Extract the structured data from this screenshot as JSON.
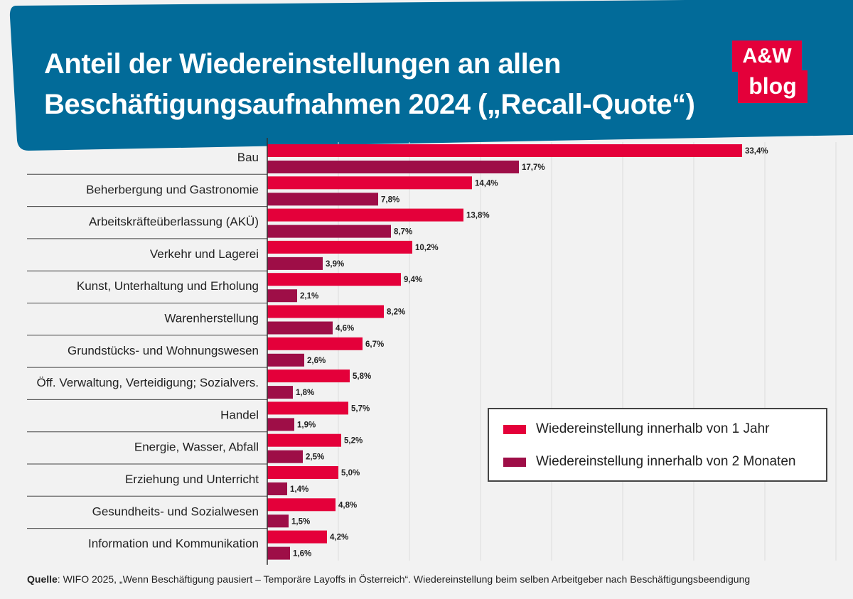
{
  "header": {
    "title_line1": "Anteil der Wiedereinstellungen an allen",
    "title_line2": "Beschäftigungsaufnahmen 2024 („Recall-Quote“)",
    "logo_top": "A&W",
    "logo_bottom": "blog"
  },
  "colors": {
    "header_bg": "#026b99",
    "series1": "#e4003a",
    "series2": "#9e0e47",
    "logo": "#e4003a"
  },
  "chart_data": {
    "type": "bar",
    "orientation": "horizontal",
    "categories": [
      "Bau",
      "Beherbergung und Gastronomie",
      "Arbeitskräfteüberlassung (AKÜ)",
      "Verkehr und Lagerei",
      "Kunst, Unterhaltung und Erholung",
      "Warenherstellung",
      "Grundstücks- und Wohnungswesen",
      "Öff. Verwaltung, Verteidigung; Sozialvers.",
      "Handel",
      "Energie, Wasser, Abfall",
      "Erziehung und Unterricht",
      "Gesundheits- und Sozialwesen",
      "Information und Kommunikation"
    ],
    "series": [
      {
        "name": "Wiedereinstellung innerhalb von 1 Jahr",
        "values": [
          33.4,
          14.4,
          13.8,
          10.2,
          9.4,
          8.2,
          6.7,
          5.8,
          5.7,
          5.2,
          5.0,
          4.8,
          4.2
        ],
        "labels": [
          "33,4%",
          "14,4%",
          "13,8%",
          "10,2%",
          "9,4%",
          "8,2%",
          "6,7%",
          "5,8%",
          "5,7%",
          "5,2%",
          "5,0%",
          "4,8%",
          "4,2%"
        ]
      },
      {
        "name": "Wiedereinstellung innerhalb von 2 Monaten",
        "values": [
          17.7,
          7.8,
          8.7,
          3.9,
          2.1,
          4.6,
          2.6,
          1.8,
          1.9,
          2.5,
          1.4,
          1.5,
          1.6
        ],
        "labels": [
          "17,7%",
          "7,8%",
          "8,7%",
          "3,9%",
          "2,1%",
          "4,6%",
          "2,6%",
          "1,8%",
          "1,9%",
          "2,5%",
          "1,4%",
          "1,5%",
          "1,6%"
        ]
      }
    ],
    "xlim": [
      0,
      40
    ],
    "grid": true,
    "legend_position": "bottom-right"
  },
  "source": {
    "label": "Quelle",
    "text": ": WIFO 2025, „Wenn Beschäftigung pausiert – Temporäre Layoffs in Österreich“. Wiedereinstellung beim selben Arbeitgeber nach Beschäftigungsbeendigung"
  }
}
